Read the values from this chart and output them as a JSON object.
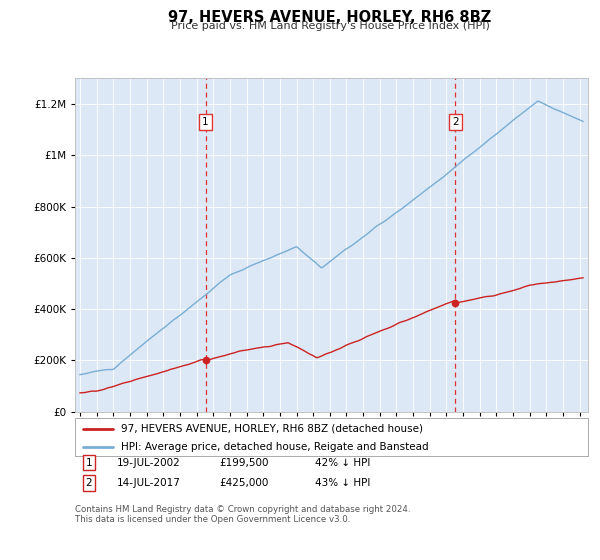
{
  "title": "97, HEVERS AVENUE, HORLEY, RH6 8BZ",
  "subtitle": "Price paid vs. HM Land Registry's House Price Index (HPI)",
  "legend_line1": "97, HEVERS AVENUE, HORLEY, RH6 8BZ (detached house)",
  "legend_line2": "HPI: Average price, detached house, Reigate and Banstead",
  "sale1_date": "19-JUL-2002",
  "sale1_price": "£199,500",
  "sale1_note": "42% ↓ HPI",
  "sale2_date": "14-JUL-2017",
  "sale2_price": "£425,000",
  "sale2_note": "43% ↓ HPI",
  "footer1": "Contains HM Land Registry data © Crown copyright and database right 2024.",
  "footer2": "This data is licensed under the Open Government Licence v3.0.",
  "hpi_color": "#7aadd4",
  "price_color": "#cc2222",
  "vline_color": "#dd3333",
  "background_plot": "#dce8f5",
  "ylim": [
    0,
    1300000
  ],
  "yticks": [
    0,
    200000,
    400000,
    600000,
    800000,
    1000000,
    1200000
  ],
  "sale1_year": 2002.54,
  "sale2_year": 2017.54,
  "sale1_price_val": 199500,
  "sale2_price_val": 425000,
  "xmin": 1994.7,
  "xmax": 2025.5
}
